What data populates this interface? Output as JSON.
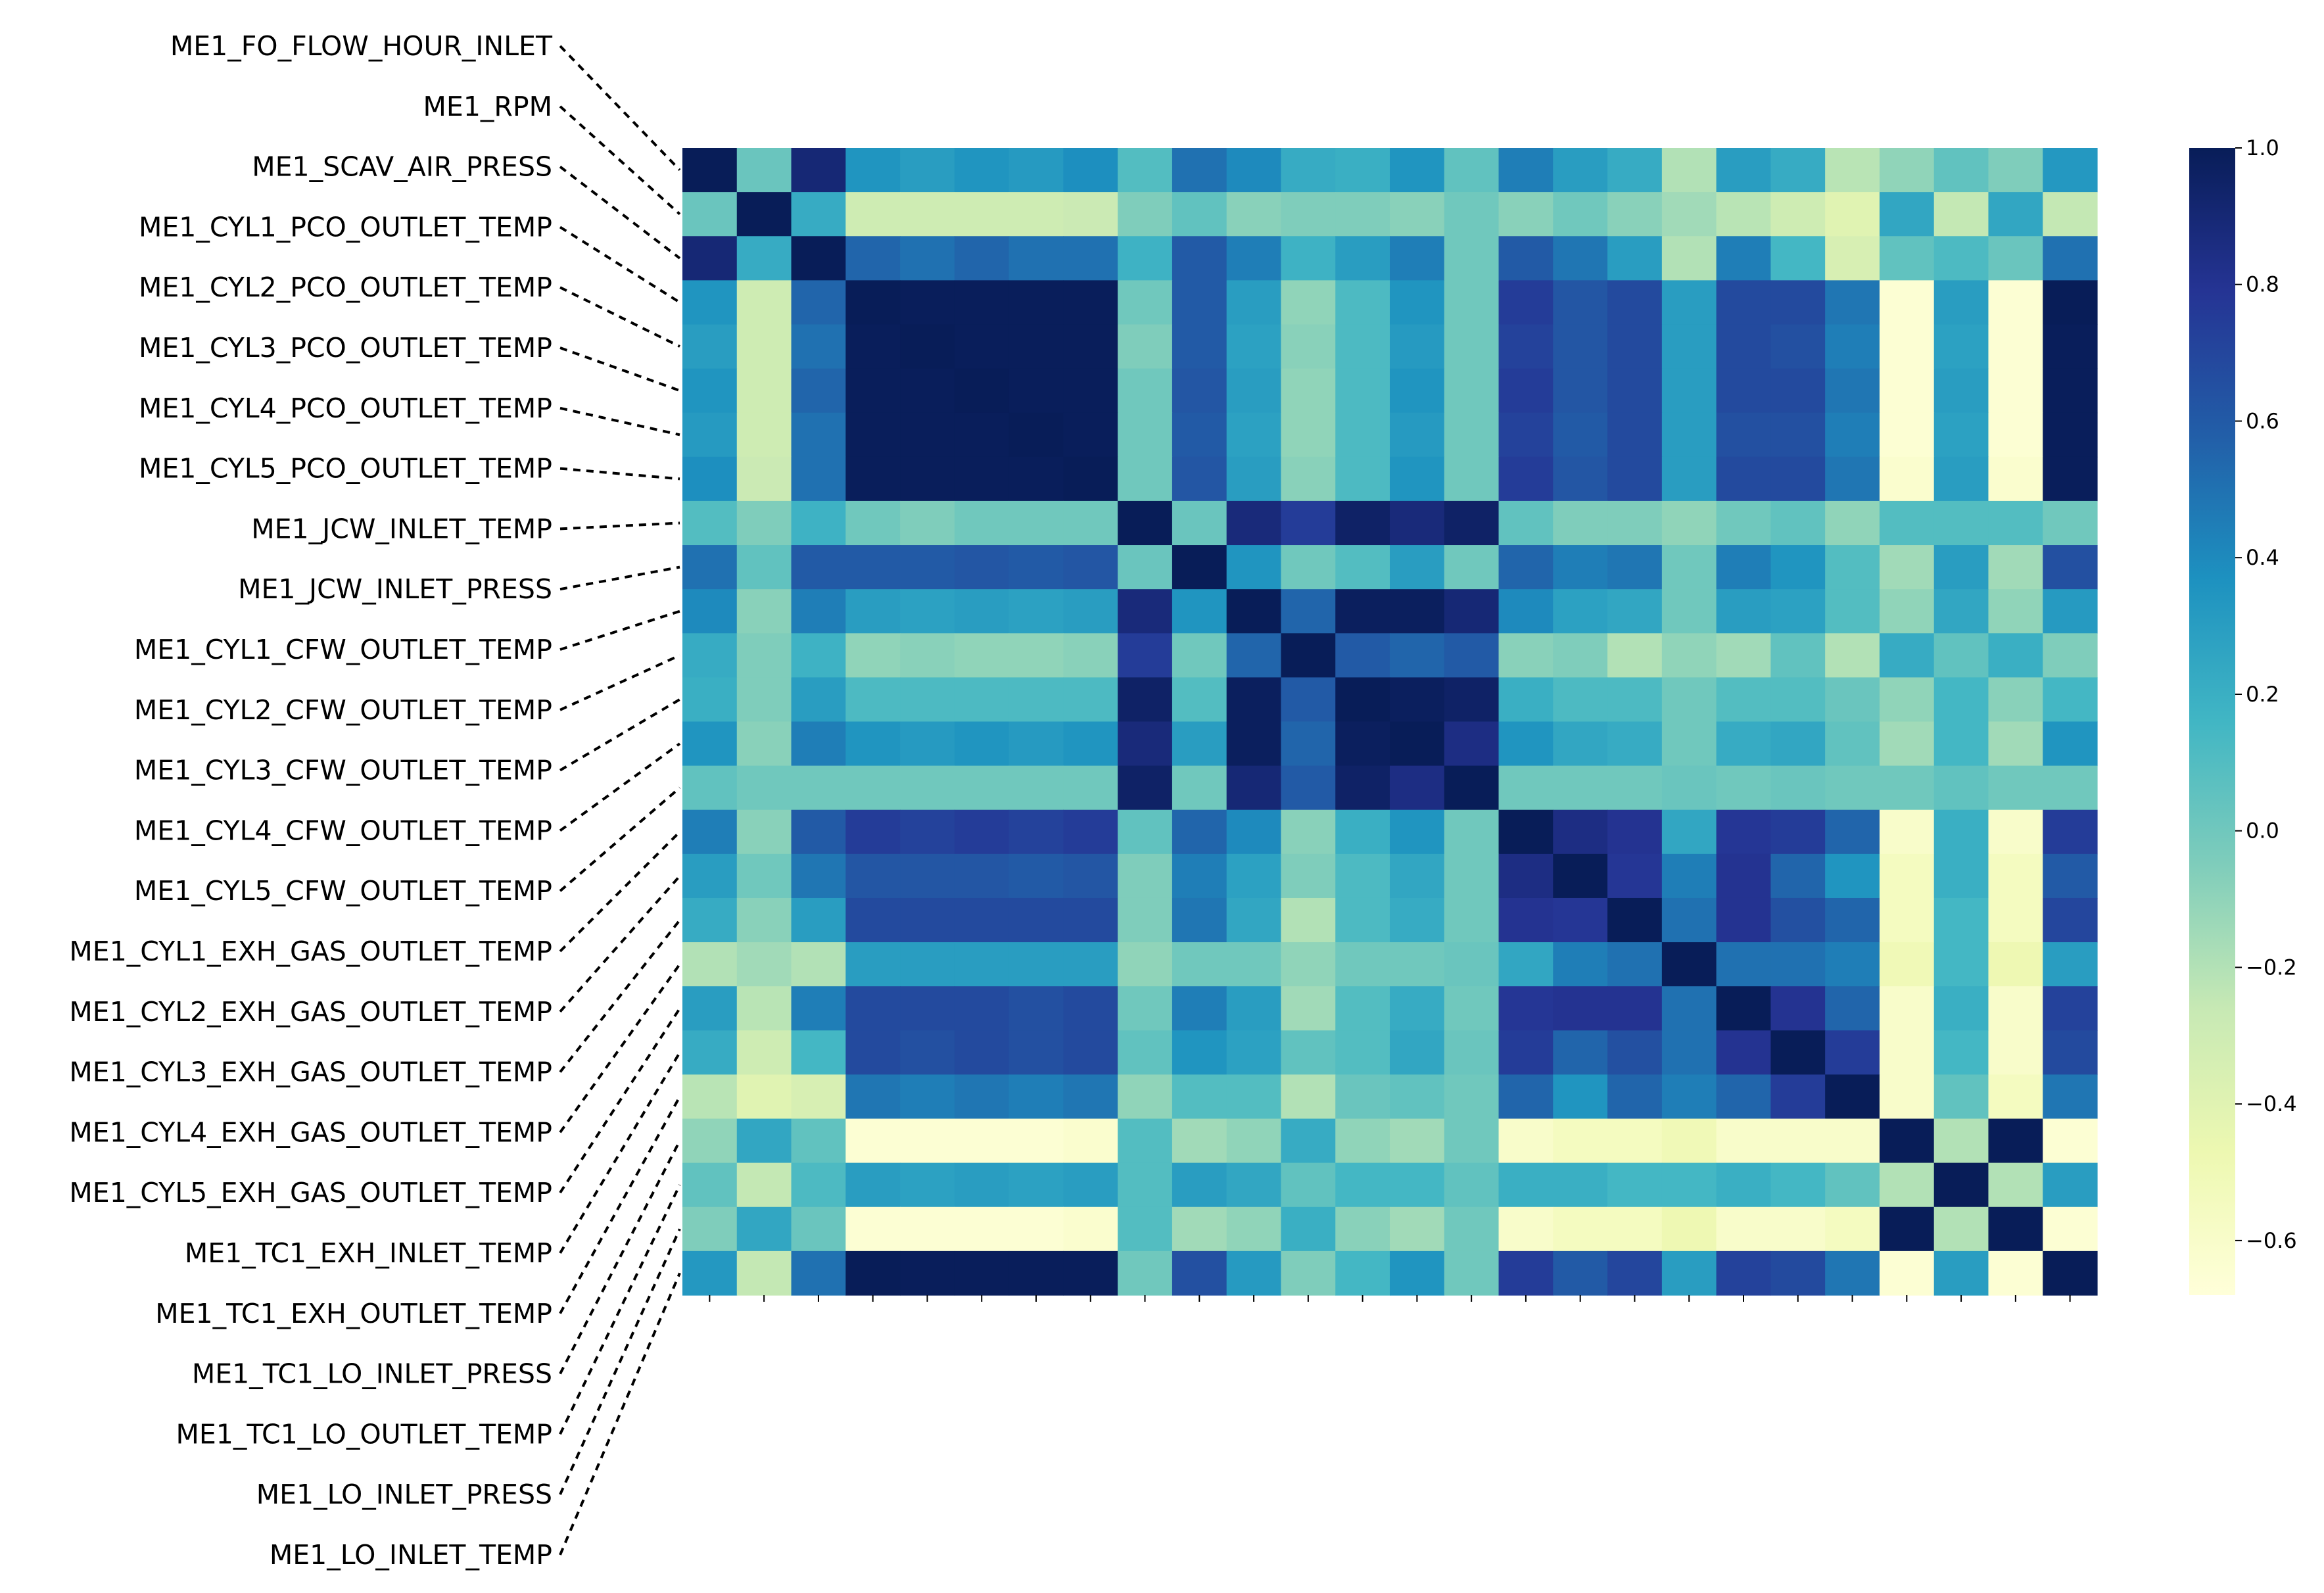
{
  "chart_data": {
    "type": "heatmap",
    "title": "",
    "xlabel": "",
    "ylabel": "",
    "labels": [
      "ME1_FO_FLOW_HOUR_INLET",
      "ME1_RPM",
      "ME1_SCAV_AIR_PRESS",
      "ME1_CYL1_PCO_OUTLET_TEMP",
      "ME1_CYL2_PCO_OUTLET_TEMP",
      "ME1_CYL3_PCO_OUTLET_TEMP",
      "ME1_CYL4_PCO_OUTLET_TEMP",
      "ME1_CYL5_PCO_OUTLET_TEMP",
      "ME1_JCW_INLET_TEMP",
      "ME1_JCW_INLET_PRESS",
      "ME1_CYL1_CFW_OUTLET_TEMP",
      "ME1_CYL2_CFW_OUTLET_TEMP",
      "ME1_CYL3_CFW_OUTLET_TEMP",
      "ME1_CYL4_CFW_OUTLET_TEMP",
      "ME1_CYL5_CFW_OUTLET_TEMP",
      "ME1_CYL1_EXH_GAS_OUTLET_TEMP",
      "ME1_CYL2_EXH_GAS_OUTLET_TEMP",
      "ME1_CYL3_EXH_GAS_OUTLET_TEMP",
      "ME1_CYL4_EXH_GAS_OUTLET_TEMP",
      "ME1_CYL5_EXH_GAS_OUTLET_TEMP",
      "ME1_TC1_EXH_INLET_TEMP",
      "ME1_TC1_EXH_OUTLET_TEMP",
      "ME1_TC1_LO_INLET_PRESS",
      "ME1_TC1_LO_OUTLET_TEMP",
      "ME1_LO_INLET_PRESS",
      "ME1_LO_INLET_TEMP"
    ],
    "values": [
      [
        1.0,
        0.02,
        0.9,
        0.35,
        0.3,
        0.35,
        0.32,
        0.38,
        0.1,
        0.5,
        0.4,
        0.22,
        0.2,
        0.35,
        0.05,
        0.45,
        0.3,
        0.22,
        -0.2,
        0.3,
        0.22,
        -0.22,
        -0.1,
        0.05,
        -0.05,
        0.33
      ],
      [
        0.02,
        1.0,
        0.22,
        -0.3,
        -0.3,
        -0.3,
        -0.3,
        -0.28,
        -0.05,
        0.05,
        -0.08,
        -0.05,
        -0.05,
        -0.08,
        0.0,
        -0.08,
        0.0,
        -0.08,
        -0.15,
        -0.22,
        -0.3,
        -0.4,
        0.25,
        -0.25,
        0.25,
        -0.25
      ],
      [
        0.9,
        0.22,
        1.0,
        0.55,
        0.5,
        0.55,
        0.5,
        0.5,
        0.18,
        0.6,
        0.45,
        0.18,
        0.3,
        0.45,
        0.0,
        0.6,
        0.48,
        0.3,
        -0.2,
        0.45,
        0.15,
        -0.35,
        0.05,
        0.12,
        0.02,
        0.5
      ],
      [
        0.35,
        -0.3,
        0.55,
        1.0,
        0.99,
        0.99,
        0.99,
        0.99,
        0.0,
        0.6,
        0.3,
        -0.1,
        0.12,
        0.35,
        0.0,
        0.75,
        0.62,
        0.68,
        0.3,
        0.68,
        0.68,
        0.48,
        -0.65,
        0.3,
        -0.65,
        1.0
      ],
      [
        0.3,
        -0.3,
        0.5,
        0.99,
        1.0,
        0.99,
        0.99,
        0.99,
        -0.05,
        0.6,
        0.28,
        -0.08,
        0.12,
        0.32,
        0.0,
        0.72,
        0.62,
        0.68,
        0.3,
        0.68,
        0.65,
        0.45,
        -0.65,
        0.28,
        -0.65,
        0.99
      ],
      [
        0.35,
        -0.3,
        0.55,
        0.99,
        0.99,
        1.0,
        0.99,
        0.99,
        0.0,
        0.62,
        0.3,
        -0.1,
        0.12,
        0.35,
        0.0,
        0.75,
        0.62,
        0.68,
        0.3,
        0.68,
        0.68,
        0.48,
        -0.65,
        0.3,
        -0.65,
        0.99
      ],
      [
        0.32,
        -0.3,
        0.5,
        0.99,
        0.99,
        0.99,
        1.0,
        0.99,
        0.0,
        0.6,
        0.28,
        -0.1,
        0.12,
        0.32,
        0.0,
        0.72,
        0.6,
        0.68,
        0.3,
        0.65,
        0.65,
        0.45,
        -0.65,
        0.28,
        -0.65,
        0.99
      ],
      [
        0.38,
        -0.28,
        0.5,
        0.99,
        0.99,
        0.99,
        0.99,
        1.0,
        0.0,
        0.62,
        0.3,
        -0.08,
        0.12,
        0.35,
        0.0,
        0.75,
        0.62,
        0.68,
        0.3,
        0.68,
        0.68,
        0.48,
        -0.62,
        0.3,
        -0.62,
        0.99
      ],
      [
        0.1,
        -0.05,
        0.18,
        0.0,
        -0.05,
        0.0,
        0.0,
        0.0,
        1.0,
        0.02,
        0.88,
        0.75,
        0.95,
        0.88,
        0.95,
        0.05,
        -0.05,
        -0.05,
        -0.1,
        0.0,
        0.05,
        -0.1,
        0.1,
        0.1,
        0.1,
        0.0
      ],
      [
        0.5,
        0.05,
        0.6,
        0.6,
        0.6,
        0.62,
        0.6,
        0.62,
        0.02,
        1.0,
        0.35,
        0.0,
        0.1,
        0.3,
        0.0,
        0.55,
        0.45,
        0.48,
        0.0,
        0.45,
        0.35,
        0.1,
        -0.15,
        0.3,
        -0.15,
        0.65
      ],
      [
        0.4,
        -0.08,
        0.45,
        0.3,
        0.28,
        0.3,
        0.28,
        0.3,
        0.88,
        0.35,
        1.0,
        0.55,
        0.98,
        0.98,
        0.9,
        0.4,
        0.28,
        0.25,
        0.0,
        0.3,
        0.28,
        0.1,
        -0.1,
        0.25,
        -0.1,
        0.32
      ],
      [
        0.22,
        -0.05,
        0.18,
        -0.1,
        -0.08,
        -0.1,
        -0.1,
        -0.08,
        0.75,
        0.0,
        0.55,
        1.0,
        0.6,
        0.55,
        0.6,
        -0.08,
        -0.05,
        -0.2,
        -0.1,
        -0.15,
        0.05,
        -0.2,
        0.22,
        0.05,
        0.2,
        -0.05
      ],
      [
        0.2,
        -0.05,
        0.3,
        0.12,
        0.12,
        0.12,
        0.12,
        0.12,
        0.95,
        0.1,
        0.98,
        0.6,
        1.0,
        0.98,
        0.95,
        0.2,
        0.12,
        0.12,
        0.0,
        0.1,
        0.1,
        0.02,
        -0.1,
        0.15,
        -0.08,
        0.15
      ],
      [
        0.35,
        -0.08,
        0.45,
        0.35,
        0.32,
        0.35,
        0.32,
        0.35,
        0.88,
        0.3,
        0.98,
        0.55,
        0.98,
        1.0,
        0.85,
        0.35,
        0.25,
        0.22,
        0.0,
        0.22,
        0.25,
        0.05,
        -0.15,
        0.15,
        -0.15,
        0.35
      ],
      [
        0.05,
        0.0,
        0.0,
        0.0,
        0.0,
        0.0,
        0.0,
        0.0,
        0.95,
        0.0,
        0.9,
        0.6,
        0.95,
        0.85,
        1.0,
        0.0,
        0.0,
        0.0,
        0.02,
        0.0,
        0.02,
        0.0,
        0.0,
        0.05,
        0.0,
        0.0
      ],
      [
        0.45,
        -0.08,
        0.6,
        0.75,
        0.72,
        0.75,
        0.72,
        0.75,
        0.05,
        0.55,
        0.4,
        -0.08,
        0.2,
        0.35,
        0.0,
        1.0,
        0.85,
        0.8,
        0.25,
        0.78,
        0.75,
        0.55,
        -0.6,
        0.2,
        -0.6,
        0.75
      ],
      [
        0.3,
        0.0,
        0.48,
        0.62,
        0.62,
        0.62,
        0.6,
        0.62,
        -0.05,
        0.45,
        0.28,
        -0.05,
        0.12,
        0.25,
        0.0,
        0.85,
        1.0,
        0.78,
        0.45,
        0.8,
        0.55,
        0.35,
        -0.55,
        0.2,
        -0.55,
        0.6
      ],
      [
        0.22,
        -0.08,
        0.3,
        0.68,
        0.68,
        0.68,
        0.68,
        0.68,
        -0.05,
        0.48,
        0.25,
        -0.2,
        0.12,
        0.22,
        0.0,
        0.8,
        0.78,
        1.0,
        0.5,
        0.8,
        0.65,
        0.55,
        -0.55,
        0.15,
        -0.55,
        0.7
      ],
      [
        -0.2,
        -0.15,
        -0.2,
        0.3,
        0.3,
        0.3,
        0.3,
        0.3,
        -0.1,
        0.0,
        0.0,
        -0.1,
        0.0,
        0.0,
        0.02,
        0.25,
        0.45,
        0.5,
        1.0,
        0.5,
        0.5,
        0.45,
        -0.5,
        0.15,
        -0.48,
        0.3
      ],
      [
        0.3,
        -0.22,
        0.45,
        0.68,
        0.68,
        0.68,
        0.65,
        0.68,
        0.0,
        0.45,
        0.3,
        -0.15,
        0.1,
        0.22,
        0.0,
        0.78,
        0.8,
        0.8,
        0.5,
        1.0,
        0.8,
        0.55,
        -0.6,
        0.2,
        -0.6,
        0.72
      ],
      [
        0.22,
        -0.3,
        0.15,
        0.68,
        0.65,
        0.68,
        0.65,
        0.68,
        0.05,
        0.35,
        0.28,
        0.05,
        0.1,
        0.25,
        0.02,
        0.75,
        0.55,
        0.65,
        0.5,
        0.8,
        1.0,
        0.75,
        -0.6,
        0.15,
        -0.6,
        0.68
      ],
      [
        -0.22,
        -0.4,
        -0.35,
        0.48,
        0.45,
        0.48,
        0.45,
        0.48,
        -0.1,
        0.1,
        0.1,
        -0.2,
        0.02,
        0.05,
        0.0,
        0.55,
        0.35,
        0.55,
        0.45,
        0.55,
        0.75,
        1.0,
        -0.6,
        0.05,
        -0.55,
        0.48
      ],
      [
        -0.1,
        0.25,
        0.05,
        -0.65,
        -0.65,
        -0.65,
        -0.65,
        -0.62,
        0.1,
        -0.15,
        -0.1,
        0.22,
        -0.1,
        -0.15,
        0.0,
        -0.6,
        -0.55,
        -0.55,
        -0.5,
        -0.6,
        -0.6,
        -0.6,
        1.0,
        -0.2,
        1.0,
        -0.65
      ],
      [
        0.05,
        -0.25,
        0.12,
        0.3,
        0.28,
        0.3,
        0.28,
        0.3,
        0.1,
        0.3,
        0.25,
        0.05,
        0.15,
        0.15,
        0.05,
        0.2,
        0.2,
        0.15,
        0.15,
        0.2,
        0.15,
        0.05,
        -0.2,
        1.0,
        -0.2,
        0.3
      ],
      [
        -0.05,
        0.25,
        0.02,
        -0.65,
        -0.65,
        -0.65,
        -0.65,
        -0.62,
        0.1,
        -0.15,
        -0.1,
        0.2,
        -0.08,
        -0.15,
        0.0,
        -0.6,
        -0.55,
        -0.55,
        -0.48,
        -0.6,
        -0.6,
        -0.55,
        1.0,
        -0.2,
        1.0,
        -0.65
      ],
      [
        0.33,
        -0.25,
        0.5,
        1.0,
        0.99,
        0.99,
        0.99,
        0.99,
        0.0,
        0.65,
        0.32,
        -0.05,
        0.15,
        0.35,
        0.0,
        0.75,
        0.6,
        0.7,
        0.3,
        0.72,
        0.68,
        0.48,
        -0.65,
        0.3,
        -0.65,
        1.0
      ]
    ],
    "colorscale": "YlGnBu",
    "vmin": -0.68,
    "vmax": 1.0,
    "colorbar_ticks": [
      {
        "value": 1.0,
        "label": "1.0"
      },
      {
        "value": 0.8,
        "label": "0.8"
      },
      {
        "value": 0.6,
        "label": "0.6"
      },
      {
        "value": 0.4,
        "label": "0.4"
      },
      {
        "value": 0.2,
        "label": "0.2"
      },
      {
        "value": 0.0,
        "label": "0.0"
      },
      {
        "value": -0.2,
        "label": "−0.2"
      },
      {
        "value": -0.4,
        "label": "−0.4"
      },
      {
        "value": -0.6,
        "label": "−0.6"
      }
    ],
    "grid": false,
    "legend": "colorbar-right"
  }
}
